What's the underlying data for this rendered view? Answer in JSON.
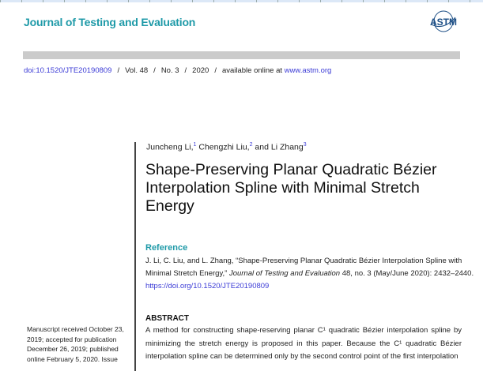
{
  "journal_title": "Journal of Testing and Evaluation",
  "logo_text": "ASTM",
  "meta": {
    "doi": "doi:10.1520/JTE20190809",
    "volume": "Vol. 48",
    "number": "No. 3",
    "year": "2020",
    "available_prefix": "available online at",
    "site": "www.astm.org",
    "separator": "/"
  },
  "authors": [
    {
      "name": "Juncheng Li,",
      "sup": "1"
    },
    {
      "name": "Chengzhi Liu,",
      "sup": "2"
    },
    {
      "name": "and Li Zhang",
      "sup": "3"
    }
  ],
  "title": "Shape-Preserving Planar Quadratic Bézier Interpolation Spline with Minimal Stretch Energy",
  "reference": {
    "heading": "Reference",
    "text": "J. Li, C. Liu, and L. Zhang, “Shape-Preserving Planar Quadratic Bézier Interpolation Spline with Minimal Stretch Energy,”",
    "journal": "Journal of Testing and Evaluation",
    "rest": "48, no. 3 (May/June 2020): 2432–2440.",
    "link": "https://doi.org/10.1520/JTE20190809"
  },
  "abstract": {
    "heading": "ABSTRACT",
    "text": "A method for constructing shape-reserving planar C¹ quadratic Bézier interpolation spline by minimizing the stretch energy is proposed in this paper. Because the C¹ quadratic Bézier interpolation spline can be determined only by the second control point of the first interpolation"
  },
  "sidebar_note": "Manuscript received October 23, 2019; accepted for publication December 26, 2019; published online February 5, 2020. Issue"
}
